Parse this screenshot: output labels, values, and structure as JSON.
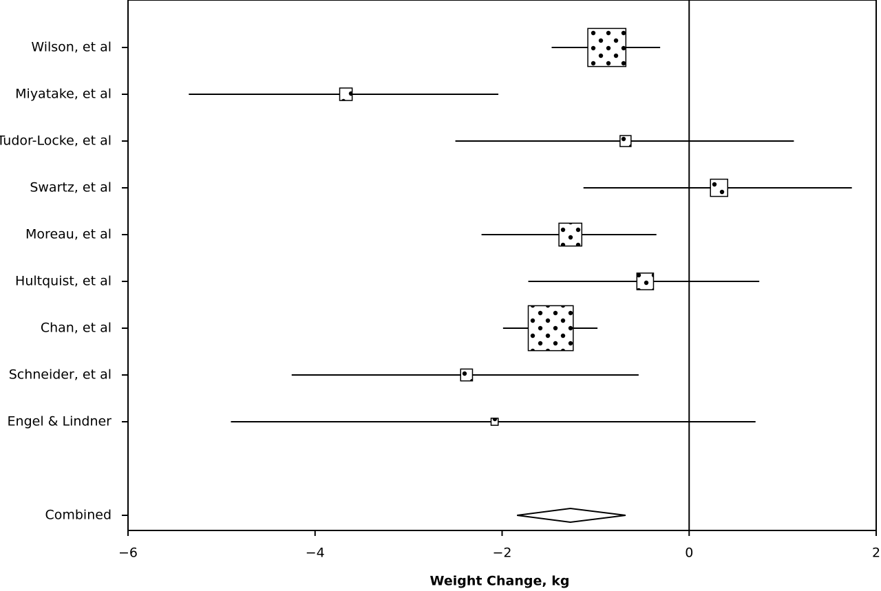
{
  "chart_data": {
    "type": "forest",
    "categories": [
      "Wilson, et al",
      "Miyatake, et al",
      "Tudor-Locke, et al",
      "Swartz, et al",
      "Moreau, et al",
      "Hultquist, et al",
      "Chan, et al",
      "Schneider, et al",
      "Engel & Lindner"
    ],
    "values": [
      -0.88,
      -3.67,
      -0.68,
      0.32,
      -1.27,
      -0.47,
      -1.48,
      -2.38,
      -2.08
    ],
    "lower": [
      -1.47,
      -5.35,
      -2.5,
      -1.13,
      -2.22,
      -1.72,
      -1.99,
      -4.25,
      -4.9
    ],
    "upper": [
      -0.31,
      -2.04,
      1.12,
      1.74,
      -0.35,
      0.75,
      -0.98,
      -0.54,
      0.71
    ],
    "weights": [
      28.8,
      3.1,
      2.4,
      5.9,
      10.4,
      5.5,
      40.2,
      2.8,
      1.0
    ],
    "combined": {
      "label": "Combined",
      "value": -1.27,
      "lower": -1.84,
      "upper": -0.68
    },
    "xlabel": "Weight Change, kg",
    "xlim": [
      -6,
      2
    ],
    "xticks": [
      {
        "value": -6,
        "label": "−6"
      },
      {
        "value": -4,
        "label": "−4"
      },
      {
        "value": -2,
        "label": "−2"
      },
      0,
      2
    ],
    "color": "#000000"
  }
}
